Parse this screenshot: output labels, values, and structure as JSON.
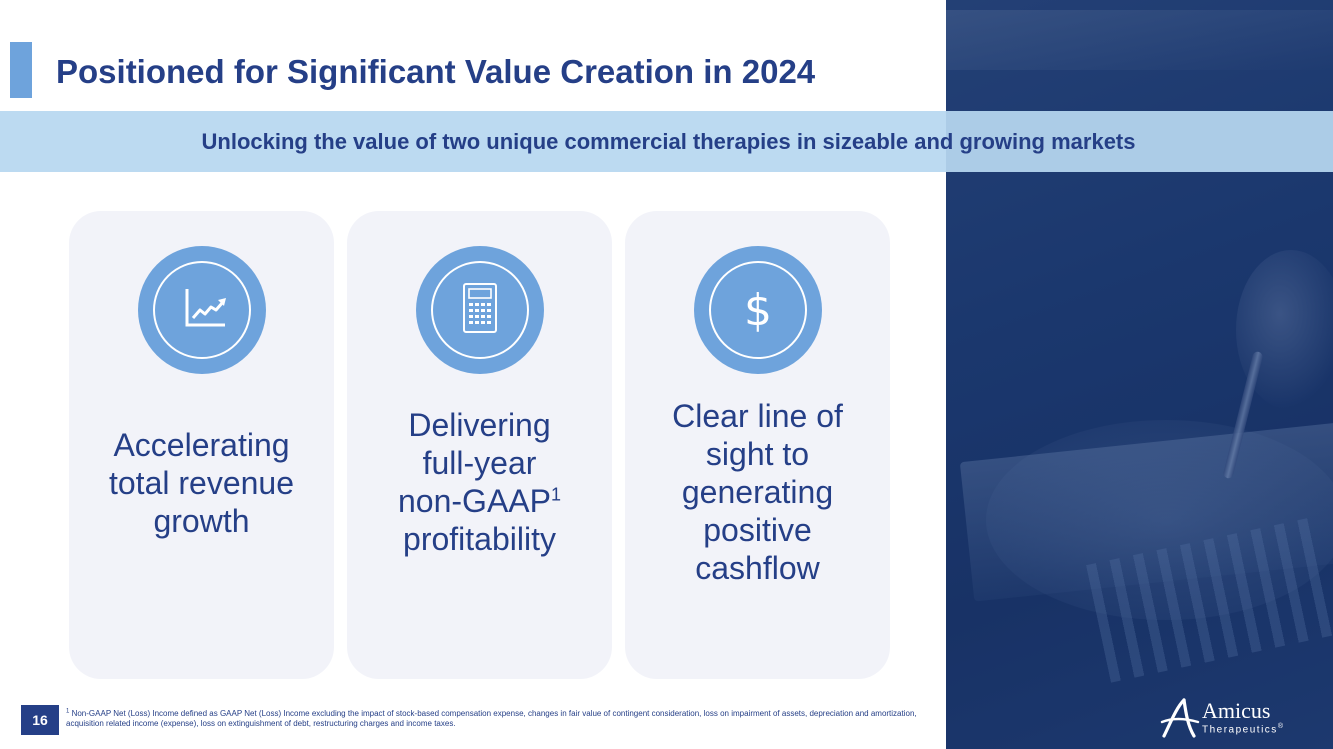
{
  "slide": {
    "title": "Positioned for Significant Value Creation in 2024",
    "banner": "Unlocking the value of two unique commercial therapies in sizeable and growing markets",
    "page_number": "16"
  },
  "cards": [
    {
      "icon": "line-chart-icon",
      "lines": [
        "Accelerating",
        "total revenue",
        "growth"
      ]
    },
    {
      "icon": "calculator-icon",
      "lines": [
        "Delivering",
        "full-year",
        "non-GAAP",
        "profitability"
      ],
      "superscript": "1"
    },
    {
      "icon": "dollar-icon",
      "symbol": "$",
      "lines": [
        "Clear line of",
        "sight to",
        "generating",
        "positive",
        "cashflow"
      ]
    }
  ],
  "footnote": {
    "marker": "1",
    "text": "Non-GAAP Net (Loss) Income defined as GAAP Net (Loss) Income excluding the impact of stock-based compensation expense, changes in fair value of contingent consideration, loss on impairment of assets, depreciation and amortization, acquisition related income (expense), loss on extinguishment of debt, restructuring charges and income taxes."
  },
  "logo": {
    "name": "Amicus",
    "sub": "Therapeutics",
    "mark": "®"
  },
  "colors": {
    "primary": "#253f87",
    "accent": "#6ea3dc",
    "banner": "#b7d7f0",
    "card": "#f2f3f9"
  }
}
